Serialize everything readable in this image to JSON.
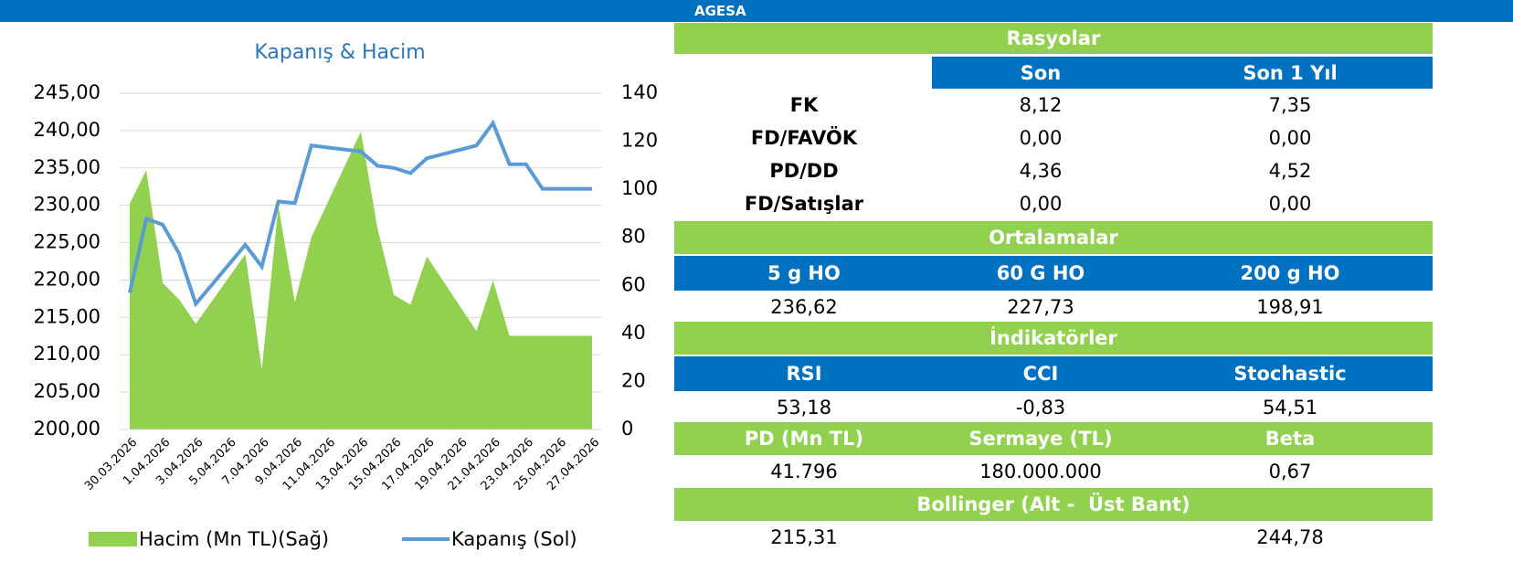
{
  "header": {
    "title": "AGESA"
  },
  "chart_data": {
    "type": "area_line",
    "title": "Kapanış & Hacim",
    "x": [
      "30.03.2026",
      "31.03.2026",
      "1.04.2026",
      "2.04.2026",
      "3.04.2026",
      "6.04.2026",
      "7.04.2026",
      "8.04.2026",
      "9.04.2026",
      "10.04.2026",
      "13.04.2026",
      "14.04.2026",
      "15.04.2026",
      "16.04.2026",
      "17.04.2026",
      "20.04.2026",
      "21.04.2026",
      "22.04.2026",
      "23.04.2026",
      "24.04.2026",
      "27.04.2026"
    ],
    "xticks": [
      "30.03.2026",
      "1.04.2026",
      "3.04.2026",
      "5.04.2026",
      "7.04.2026",
      "9.04.2026",
      "11.04.2026",
      "13.04.2026",
      "15.04.2026",
      "17.04.2026",
      "19.04.2026",
      "21.04.2026",
      "23.04.2026",
      "25.04.2026",
      "27.04.2026"
    ],
    "series": [
      {
        "name": "Hacim (Mn TL)(Sağ)",
        "color": "#92d050",
        "axis": "y2",
        "values": [
          94,
          108,
          61,
          54,
          44,
          73,
          25,
          93,
          53,
          80,
          124,
          84,
          56,
          52,
          72,
          41,
          62,
          39,
          39,
          39,
          39
        ]
      },
      {
        "name": "Kapanış (Sol)",
        "color": "#5b9bd5",
        "axis": "y",
        "values": [
          218.3,
          228.2,
          227.4,
          223.5,
          216.8,
          224.7,
          221.8,
          230.5,
          230.3,
          238.0,
          237.2,
          235.3,
          235.0,
          234.3,
          236.3,
          238.0,
          241.0,
          235.5,
          235.5,
          232.2,
          232.2
        ]
      }
    ],
    "ylim": [
      200,
      245
    ],
    "yticks": [
      {
        "value": 200,
        "label": "200,00"
      },
      {
        "value": 205,
        "label": "205,00"
      },
      {
        "value": 210,
        "label": "210,00"
      },
      {
        "value": 215,
        "label": "215,00"
      },
      {
        "value": 220,
        "label": "220,00"
      },
      {
        "value": 225,
        "label": "225,00"
      },
      {
        "value": 230,
        "label": "230,00"
      },
      {
        "value": 235,
        "label": "235,00"
      },
      {
        "value": 240,
        "label": "240,00"
      },
      {
        "value": 245,
        "label": "245,00"
      }
    ],
    "y2lim": [
      0,
      140
    ],
    "y2ticks": [
      0,
      20,
      40,
      60,
      80,
      100,
      120,
      140
    ],
    "grid": true,
    "legend": "bottom"
  },
  "table": {
    "ratios": {
      "title": "Rasyolar",
      "columns": [
        "Son",
        "Son 1 Yıl"
      ],
      "rows": [
        [
          "FK",
          "8,12",
          "7,35"
        ],
        [
          "FD/FAVÖK",
          "0,00",
          "0,00"
        ],
        [
          "PD/DD",
          "4,36",
          "4,52"
        ],
        [
          "FD/Satışlar",
          "0,00",
          "0,00"
        ]
      ]
    },
    "averages": {
      "title": "Ortalamalar",
      "columns": [
        "5 g HO",
        "60 G HO",
        "200 g HO"
      ],
      "values": [
        "236,62",
        "227,73",
        "198,91"
      ]
    },
    "indicators": {
      "title": "İndikatörler",
      "columns": [
        "RSI",
        "CCI",
        "Stochastic"
      ],
      "values": [
        "53,18",
        "-0,83",
        "54,51"
      ]
    },
    "info": {
      "columns": [
        "PD (Mn TL)",
        "Sermaye (TL)",
        "Beta"
      ],
      "values": [
        "41.796",
        "180.000.000",
        "0,67"
      ]
    },
    "bollinger": {
      "title": "Bollinger (Alt -  Üst Bant)",
      "values": [
        "215,31",
        "244,78"
      ]
    }
  }
}
